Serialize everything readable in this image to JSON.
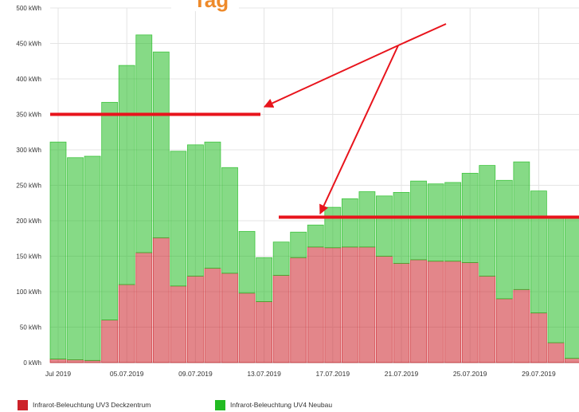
{
  "chart_data": {
    "type": "bar",
    "stacked": true,
    "title": "Tag",
    "categories": [
      "Jul 2019",
      null,
      null,
      null,
      "05.07.2019",
      null,
      null,
      null,
      "09.07.2019",
      null,
      null,
      null,
      "13.07.2019",
      null,
      null,
      null,
      "17.07.2019",
      null,
      null,
      null,
      "21.07.2019",
      null,
      null,
      null,
      "25.07.2019",
      null,
      null,
      null,
      "29.07.2019",
      null,
      null
    ],
    "series": [
      {
        "name": "Infrarot-Beleuchtung UV3 Deckzentrum",
        "color": "#cc2229",
        "values": [
          5,
          4,
          3,
          60,
          110,
          155,
          176,
          108,
          122,
          133,
          126,
          98,
          86,
          123,
          148,
          163,
          162,
          163,
          163,
          150,
          140,
          145,
          143,
          143,
          141,
          122,
          90,
          103,
          70,
          28,
          6
        ]
      },
      {
        "name": "Infrarot-Beleuchtung UV4 Neubau",
        "color": "#22bb22",
        "values": [
          306,
          285,
          288,
          307,
          309,
          307,
          262,
          190,
          185,
          178,
          149,
          87,
          62,
          47,
          36,
          31,
          57,
          68,
          78,
          85,
          100,
          111,
          109,
          111,
          126,
          156,
          167,
          180,
          172,
          178,
          200
        ]
      }
    ],
    "ylim": [
      0,
      500
    ],
    "yticks": [
      {
        "value": 0,
        "label": "0 kWh"
      },
      {
        "value": 50,
        "label": "50 kWh"
      },
      {
        "value": 100,
        "label": "100 kWh"
      },
      {
        "value": 150,
        "label": "150 kWh"
      },
      {
        "value": 200,
        "label": "200 kWh"
      },
      {
        "value": 250,
        "label": "250 kWh"
      },
      {
        "value": 300,
        "label": "300 kWh"
      },
      {
        "value": 350,
        "label": "350 kWh"
      },
      {
        "value": 400,
        "label": "400 kWh"
      },
      {
        "value": 450,
        "label": "450 kWh"
      },
      {
        "value": 500,
        "label": "500 kWh"
      }
    ],
    "grid": true,
    "reference_lines": [
      350,
      205
    ]
  }
}
